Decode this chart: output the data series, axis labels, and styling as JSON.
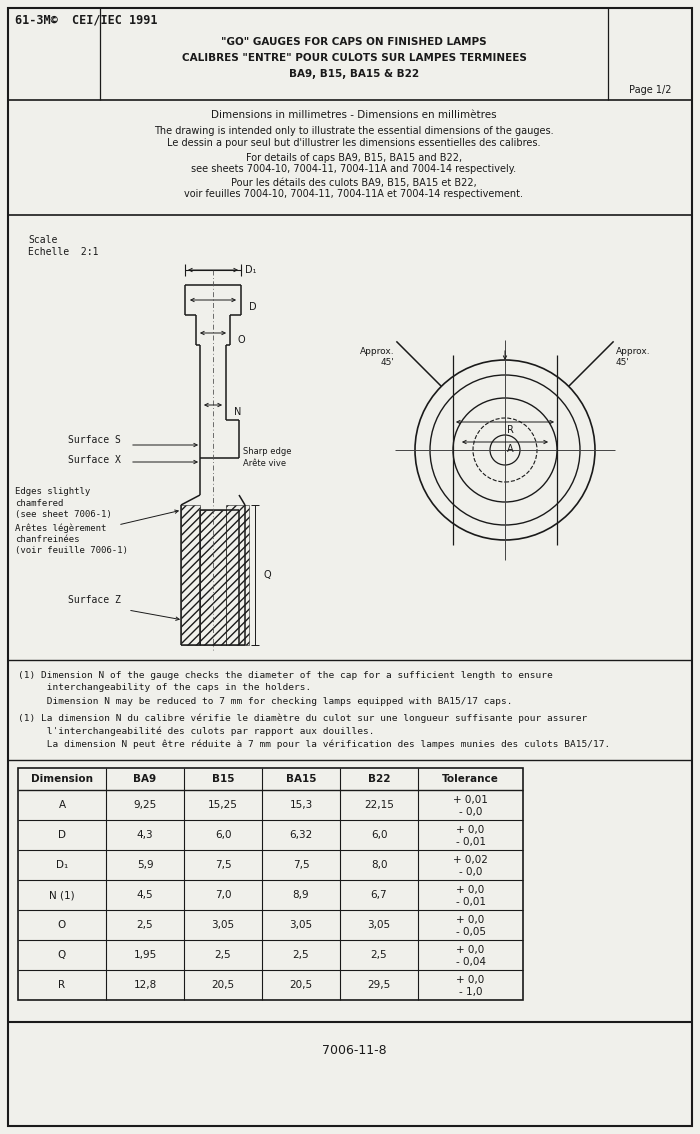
{
  "page_header": "61-3M©  CEI/IEC 1991",
  "title_line1": "\"GO\" GAUGES FOR CAPS ON FINISHED LAMPS",
  "title_line2": "CALIBRES \"ENTRE\" POUR CULOTS SUR LAMPES TERMINEES",
  "title_line3": "BA9, B15, BA15 & B22",
  "page_label": "Page 1/2",
  "desc_line1": "Dimensions in millimetres - Dimensions en millimètres",
  "desc_line2": "The drawing is intended only to illustrate the essential dimensions of the gauges.",
  "desc_line3": "Le dessin a pour seul but d'illustrer les dimensions essentielles des calibres.",
  "desc_line4": "For details of caps BA9, B15, BA15 and B22,",
  "desc_line5": "see sheets 7004-10, 7004-11, 7004-11A and 7004-14 respectively.",
  "desc_line6": "Pour les détails des culots BA9, B15, BA15 et B22,",
  "desc_line7": "voir feuilles 7004-10, 7004-11, 7004-11A et 7004-14 respectivement.",
  "note1_line1": "(1) Dimension N of the gauge checks the diameter of the cap for a sufficient length to ensure",
  "note1_line2": "     interchangeability of the caps in the holders.",
  "note1_line3": "     Dimension N may be reduced to 7 mm for checking lamps equipped with BA15/17 caps.",
  "note2_line1": "(1) La dimension N du calibre vérifie le diamètre du culot sur une longueur suffisante pour assurer",
  "note2_line2": "     l'interchangeabilité des culots par rapport aux douilles.",
  "note2_line3": "     La dimension N peut être réduite à 7 mm pour la vérification des lampes munies des culots BA15/17.",
  "footer_label": "7006-11-8",
  "table_headers": [
    "Dimension",
    "BA9",
    "B15",
    "BA15",
    "B22",
    "Tolerance"
  ],
  "table_rows": [
    [
      "A",
      "9,25",
      "15,25",
      "15,3",
      "22,15",
      "+ 0,01\n- 0,0"
    ],
    [
      "D",
      "4,3",
      "6,0",
      "6,32",
      "6,0",
      "+ 0,0\n- 0,01"
    ],
    [
      "D₁",
      "5,9",
      "7,5",
      "7,5",
      "8,0",
      "+ 0,02\n- 0,0"
    ],
    [
      "N (1)",
      "4,5",
      "7,0",
      "8,9",
      "6,7",
      "+ 0,0\n- 0,01"
    ],
    [
      "O",
      "2,5",
      "3,05",
      "3,05",
      "3,05",
      "+ 0,0\n- 0,05"
    ],
    [
      "Q",
      "1,95",
      "2,5",
      "2,5",
      "2,5",
      "+ 0,0\n- 0,04"
    ],
    [
      "R",
      "12,8",
      "20,5",
      "20,5",
      "29,5",
      "+ 0,0\n- 1,0"
    ]
  ],
  "bg_color": "#f0f0eb",
  "line_color": "#1a1a1a"
}
